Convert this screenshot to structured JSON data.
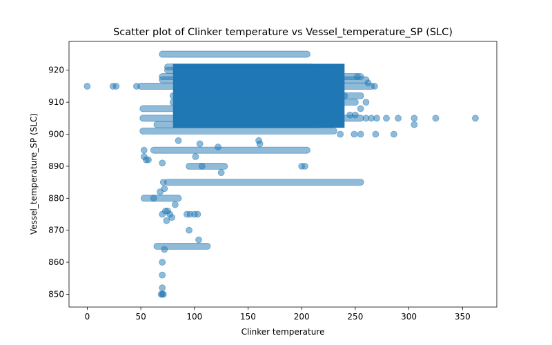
{
  "chart_data": {
    "type": "scatter",
    "title": "Scatter plot of Clinker temperature vs Vessel_temperature_SP (SLC)",
    "xlabel": "Clinker temperature",
    "ylabel": "Vessel_temperature_SP (SLC)",
    "xlim": [
      -17,
      382
    ],
    "ylim": [
      846,
      929
    ],
    "xticks": [
      0,
      50,
      100,
      150,
      200,
      250,
      300,
      350
    ],
    "yticks": [
      850,
      860,
      870,
      880,
      890,
      900,
      910,
      920
    ],
    "color": "#1f77b4",
    "grid": false,
    "dense_bands": [
      {
        "y": 925,
        "x_start": 70,
        "x_end": 205
      },
      {
        "y": 921,
        "x_start": 75,
        "x_end": 210
      },
      {
        "y": 920,
        "x_start": 75,
        "x_end": 235
      },
      {
        "y": 918,
        "x_start": 70,
        "x_end": 255
      },
      {
        "y": 917,
        "x_start": 70,
        "x_end": 260
      },
      {
        "y": 915,
        "x_start": 50,
        "x_end": 265
      },
      {
        "y": 912,
        "x_start": 80,
        "x_end": 255
      },
      {
        "y": 910,
        "x_start": 80,
        "x_end": 250
      },
      {
        "y": 908,
        "x_start": 52,
        "x_end": 215
      },
      {
        "y": 905,
        "x_start": 52,
        "x_end": 255
      },
      {
        "y": 903,
        "x_start": 65,
        "x_end": 215
      },
      {
        "y": 901,
        "x_start": 52,
        "x_end": 230
      },
      {
        "y": 895,
        "x_start": 62,
        "x_end": 205
      },
      {
        "y": 890,
        "x_start": 95,
        "x_end": 128
      },
      {
        "y": 885,
        "x_start": 75,
        "x_end": 255
      },
      {
        "y": 880,
        "x_start": 53,
        "x_end": 85
      },
      {
        "y": 865,
        "x_start": 65,
        "x_end": 112
      }
    ],
    "dense_block": {
      "x": [
        80,
        240
      ],
      "y": [
        902,
        922
      ]
    },
    "points": [
      {
        "x": 0,
        "y": 915
      },
      {
        "x": 24,
        "y": 915
      },
      {
        "x": 27,
        "y": 915
      },
      {
        "x": 46,
        "y": 915
      },
      {
        "x": 53,
        "y": 895
      },
      {
        "x": 53,
        "y": 893
      },
      {
        "x": 55,
        "y": 892
      },
      {
        "x": 57,
        "y": 892
      },
      {
        "x": 62,
        "y": 880
      },
      {
        "x": 68,
        "y": 882
      },
      {
        "x": 70,
        "y": 875
      },
      {
        "x": 72,
        "y": 883
      },
      {
        "x": 73,
        "y": 876
      },
      {
        "x": 75,
        "y": 876
      },
      {
        "x": 74,
        "y": 873
      },
      {
        "x": 79,
        "y": 874
      },
      {
        "x": 77,
        "y": 875
      },
      {
        "x": 82,
        "y": 878
      },
      {
        "x": 70,
        "y": 891
      },
      {
        "x": 71,
        "y": 885
      },
      {
        "x": 70,
        "y": 860
      },
      {
        "x": 70,
        "y": 856
      },
      {
        "x": 70,
        "y": 852
      },
      {
        "x": 70,
        "y": 850
      },
      {
        "x": 69,
        "y": 850
      },
      {
        "x": 71,
        "y": 850
      },
      {
        "x": 72,
        "y": 864
      },
      {
        "x": 93,
        "y": 875
      },
      {
        "x": 96,
        "y": 875
      },
      {
        "x": 100,
        "y": 875
      },
      {
        "x": 103,
        "y": 875
      },
      {
        "x": 95,
        "y": 870
      },
      {
        "x": 104,
        "y": 867
      },
      {
        "x": 101,
        "y": 893
      },
      {
        "x": 107,
        "y": 890
      },
      {
        "x": 125,
        "y": 888
      },
      {
        "x": 200,
        "y": 890
      },
      {
        "x": 203,
        "y": 890
      },
      {
        "x": 105,
        "y": 897
      },
      {
        "x": 85,
        "y": 898
      },
      {
        "x": 122,
        "y": 896
      },
      {
        "x": 161,
        "y": 897
      },
      {
        "x": 160,
        "y": 898
      },
      {
        "x": 255,
        "y": 900
      },
      {
        "x": 236,
        "y": 900
      },
      {
        "x": 249,
        "y": 900
      },
      {
        "x": 269,
        "y": 900
      },
      {
        "x": 286,
        "y": 900
      },
      {
        "x": 215,
        "y": 903
      },
      {
        "x": 260,
        "y": 905
      },
      {
        "x": 265,
        "y": 905
      },
      {
        "x": 270,
        "y": 905
      },
      {
        "x": 279,
        "y": 905
      },
      {
        "x": 290,
        "y": 905
      },
      {
        "x": 305,
        "y": 905
      },
      {
        "x": 325,
        "y": 905
      },
      {
        "x": 362,
        "y": 905
      },
      {
        "x": 305,
        "y": 903
      },
      {
        "x": 245,
        "y": 906
      },
      {
        "x": 250,
        "y": 906
      },
      {
        "x": 255,
        "y": 908
      },
      {
        "x": 260,
        "y": 910
      },
      {
        "x": 232,
        "y": 908
      },
      {
        "x": 240,
        "y": 912
      },
      {
        "x": 262,
        "y": 916
      },
      {
        "x": 268,
        "y": 915
      },
      {
        "x": 252,
        "y": 918
      }
    ]
  }
}
